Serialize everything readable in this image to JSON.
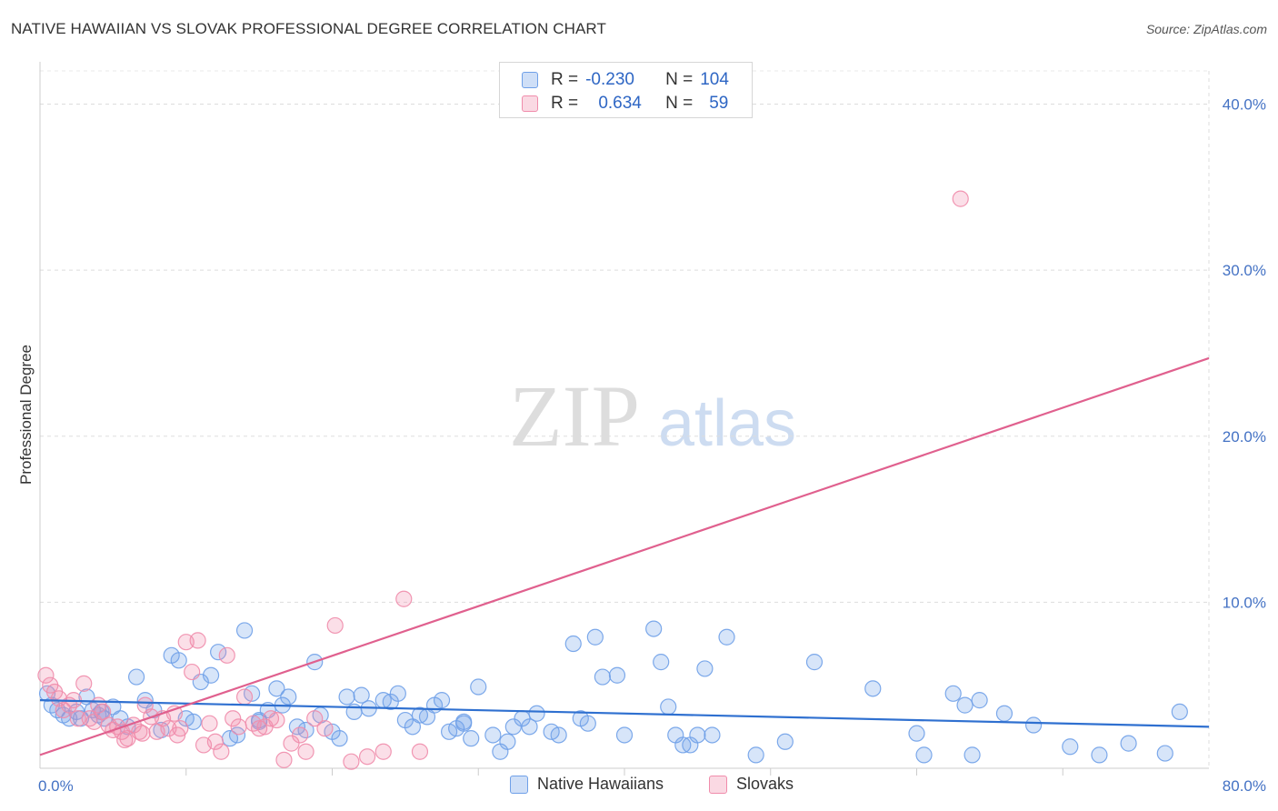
{
  "title": "NATIVE HAWAIIAN VS SLOVAK PROFESSIONAL DEGREE CORRELATION CHART",
  "source": "Source: ZipAtlas.com",
  "watermark": {
    "zip": "ZIP",
    "atlas": "atlas"
  },
  "legend": {
    "rows": [
      {
        "r_label": "R =",
        "r_value": "-0.230",
        "n_label": "N =",
        "n_value": "104",
        "color": "#6fa0e8"
      },
      {
        "r_label": "R =",
        "r_value": "0.634",
        "n_label": "N =",
        "n_value": "59",
        "color": "#f08cab"
      }
    ]
  },
  "bottom_legend": [
    {
      "label": "Native Hawaiians",
      "color": "#6fa0e8"
    },
    {
      "label": "Slovaks",
      "color": "#f08cab"
    }
  ],
  "chart_data": {
    "type": "scatter",
    "ylabel": "Professional Degree",
    "xlabel": "",
    "xlim": [
      0,
      80
    ],
    "ylim": [
      0,
      42
    ],
    "x_ticks": [
      {
        "value": 0,
        "label": "0.0%"
      },
      {
        "value": 80,
        "label": "80.0%"
      }
    ],
    "y_ticks": [
      {
        "value": 10,
        "label": "10.0%"
      },
      {
        "value": 20,
        "label": "20.0%"
      },
      {
        "value": 30,
        "label": "30.0%"
      },
      {
        "value": 40,
        "label": "40.0%"
      }
    ],
    "grid": true,
    "series": [
      {
        "name": "Native Hawaiians",
        "color": "#6fa0e8",
        "line_color": "#2f70d0",
        "trend": {
          "x1": 0,
          "y1": 4.1,
          "x2": 80,
          "y2": 2.5
        },
        "points": [
          [
            0.5,
            4.5
          ],
          [
            0.8,
            3.8
          ],
          [
            1.2,
            3.5
          ],
          [
            1.6,
            3.2
          ],
          [
            2.0,
            3.0
          ],
          [
            2.5,
            3.4
          ],
          [
            2.8,
            3.0
          ],
          [
            3.2,
            4.3
          ],
          [
            3.6,
            3.5
          ],
          [
            4.0,
            3.2
          ],
          [
            4.4,
            3.0
          ],
          [
            5.0,
            3.7
          ],
          [
            5.5,
            3.0
          ],
          [
            6.0,
            2.5
          ],
          [
            6.6,
            5.5
          ],
          [
            7.2,
            4.1
          ],
          [
            7.8,
            3.5
          ],
          [
            8.3,
            2.3
          ],
          [
            9.0,
            6.8
          ],
          [
            9.5,
            6.5
          ],
          [
            10.0,
            3.0
          ],
          [
            10.5,
            2.8
          ],
          [
            11.0,
            5.2
          ],
          [
            11.7,
            5.6
          ],
          [
            12.2,
            7.0
          ],
          [
            13.0,
            1.8
          ],
          [
            13.5,
            2.0
          ],
          [
            14.0,
            8.3
          ],
          [
            14.5,
            4.5
          ],
          [
            15.0,
            2.8
          ],
          [
            15.6,
            3.5
          ],
          [
            16.2,
            4.8
          ],
          [
            16.6,
            3.8
          ],
          [
            17.0,
            4.3
          ],
          [
            17.6,
            2.5
          ],
          [
            18.2,
            2.3
          ],
          [
            18.8,
            6.4
          ],
          [
            19.2,
            3.2
          ],
          [
            20.0,
            2.2
          ],
          [
            20.5,
            1.8
          ],
          [
            21.0,
            4.3
          ],
          [
            21.5,
            3.4
          ],
          [
            22.0,
            4.4
          ],
          [
            22.5,
            3.6
          ],
          [
            23.5,
            4.1
          ],
          [
            24.0,
            4.0
          ],
          [
            24.5,
            4.5
          ],
          [
            25.0,
            2.9
          ],
          [
            25.5,
            2.5
          ],
          [
            26.0,
            3.2
          ],
          [
            27.0,
            3.8
          ],
          [
            27.5,
            4.1
          ],
          [
            28.0,
            2.2
          ],
          [
            28.5,
            2.4
          ],
          [
            29.0,
            2.7
          ],
          [
            29.5,
            1.8
          ],
          [
            30.0,
            4.9
          ],
          [
            31.0,
            2.0
          ],
          [
            31.5,
            1.0
          ],
          [
            32.0,
            1.6
          ],
          [
            32.4,
            2.5
          ],
          [
            33.0,
            3.0
          ],
          [
            33.5,
            2.5
          ],
          [
            34.0,
            3.3
          ],
          [
            35.0,
            2.2
          ],
          [
            35.5,
            2.0
          ],
          [
            36.5,
            7.5
          ],
          [
            37.0,
            3.0
          ],
          [
            37.5,
            2.7
          ],
          [
            38.0,
            7.9
          ],
          [
            38.5,
            5.5
          ],
          [
            39.5,
            5.6
          ],
          [
            40.0,
            2.0
          ],
          [
            42.0,
            8.4
          ],
          [
            42.5,
            6.4
          ],
          [
            43.0,
            3.7
          ],
          [
            43.5,
            2.0
          ],
          [
            44.0,
            1.4
          ],
          [
            44.5,
            1.4
          ],
          [
            45.0,
            2.0
          ],
          [
            45.5,
            6.0
          ],
          [
            46.0,
            2.0
          ],
          [
            47.0,
            7.9
          ],
          [
            49.0,
            0.8
          ],
          [
            51.0,
            1.6
          ],
          [
            53.0,
            6.4
          ],
          [
            57.0,
            4.8
          ],
          [
            60.0,
            2.1
          ],
          [
            60.5,
            0.8
          ],
          [
            62.5,
            4.5
          ],
          [
            63.3,
            3.8
          ],
          [
            63.8,
            0.8
          ],
          [
            64.3,
            4.1
          ],
          [
            66.0,
            3.3
          ],
          [
            68.0,
            2.6
          ],
          [
            70.5,
            1.3
          ],
          [
            72.5,
            0.8
          ],
          [
            74.5,
            1.5
          ],
          [
            77.0,
            0.9
          ],
          [
            78.0,
            3.4
          ],
          [
            29.0,
            2.8
          ],
          [
            15.0,
            2.9
          ],
          [
            4.2,
            3.4
          ],
          [
            26.5,
            3.1
          ]
        ]
      },
      {
        "name": "Slovaks",
        "color": "#f08cab",
        "line_color": "#e0608e",
        "trend": {
          "x1": 0,
          "y1": 0.8,
          "x2": 80,
          "y2": 24.7
        },
        "points": [
          [
            0.4,
            5.6
          ],
          [
            0.7,
            5.0
          ],
          [
            1.0,
            4.6
          ],
          [
            1.3,
            4.2
          ],
          [
            1.6,
            3.5
          ],
          [
            2.0,
            3.8
          ],
          [
            2.3,
            4.1
          ],
          [
            2.6,
            3.0
          ],
          [
            3.0,
            5.1
          ],
          [
            3.4,
            3.0
          ],
          [
            3.7,
            2.8
          ],
          [
            4.0,
            3.8
          ],
          [
            4.3,
            3.4
          ],
          [
            4.7,
            2.6
          ],
          [
            5.0,
            2.3
          ],
          [
            5.3,
            2.5
          ],
          [
            5.6,
            2.2
          ],
          [
            6.0,
            1.8
          ],
          [
            6.4,
            2.6
          ],
          [
            6.8,
            2.2
          ],
          [
            7.2,
            3.8
          ],
          [
            7.6,
            3.1
          ],
          [
            8.0,
            2.2
          ],
          [
            8.4,
            3.0
          ],
          [
            8.8,
            2.4
          ],
          [
            9.2,
            3.3
          ],
          [
            9.6,
            2.4
          ],
          [
            10.0,
            7.6
          ],
          [
            10.4,
            5.8
          ],
          [
            10.8,
            7.7
          ],
          [
            11.2,
            1.4
          ],
          [
            11.6,
            2.7
          ],
          [
            12.0,
            1.6
          ],
          [
            12.4,
            1.0
          ],
          [
            12.8,
            6.8
          ],
          [
            13.2,
            3.0
          ],
          [
            13.6,
            2.5
          ],
          [
            14.0,
            4.3
          ],
          [
            14.6,
            2.7
          ],
          [
            15.0,
            2.4
          ],
          [
            15.4,
            2.5
          ],
          [
            15.8,
            3.0
          ],
          [
            16.2,
            2.9
          ],
          [
            16.7,
            0.5
          ],
          [
            17.2,
            1.5
          ],
          [
            17.8,
            2.0
          ],
          [
            18.2,
            1.0
          ],
          [
            18.8,
            3.0
          ],
          [
            19.5,
            2.4
          ],
          [
            20.2,
            8.6
          ],
          [
            21.3,
            0.4
          ],
          [
            22.4,
            0.7
          ],
          [
            23.5,
            1.0
          ],
          [
            24.9,
            10.2
          ],
          [
            26.0,
            1.0
          ],
          [
            63.0,
            34.3
          ],
          [
            5.8,
            1.7
          ],
          [
            9.4,
            2.0
          ],
          [
            7.0,
            2.1
          ]
        ]
      }
    ]
  }
}
